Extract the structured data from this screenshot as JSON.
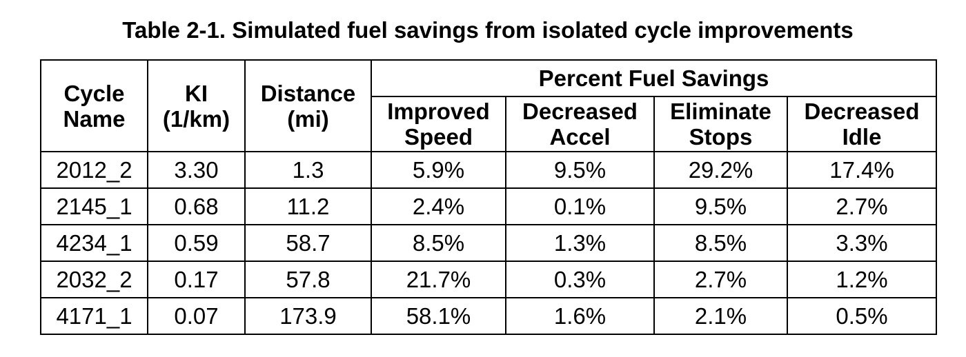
{
  "caption": "Table 2-1. Simulated fuel savings from isolated cycle improvements",
  "table": {
    "headers": {
      "cycle_name": [
        "Cycle",
        "Name"
      ],
      "ki": [
        "KI",
        "(1/km)"
      ],
      "distance": [
        "Distance",
        "(mi)"
      ],
      "group": "Percent Fuel Savings",
      "improved_speed": [
        "Improved",
        "Speed"
      ],
      "decreased_accel": [
        "Decreased",
        "Accel"
      ],
      "eliminate_stops": [
        "Eliminate",
        "Stops"
      ],
      "decreased_idle": [
        "Decreased",
        "Idle"
      ]
    },
    "rows": [
      [
        "2012_2",
        "3.30",
        "1.3",
        "5.9%",
        "9.5%",
        "29.2%",
        "17.4%"
      ],
      [
        "2145_1",
        "0.68",
        "11.2",
        "2.4%",
        "0.1%",
        "9.5%",
        "2.7%"
      ],
      [
        "4234_1",
        "0.59",
        "58.7",
        "8.5%",
        "1.3%",
        "8.5%",
        "3.3%"
      ],
      [
        "2032_2",
        "0.17",
        "57.8",
        "21.7%",
        "0.3%",
        "2.7%",
        "1.2%"
      ],
      [
        "4171_1",
        "0.07",
        "173.9",
        "58.1%",
        "1.6%",
        "2.1%",
        "0.5%"
      ]
    ]
  }
}
